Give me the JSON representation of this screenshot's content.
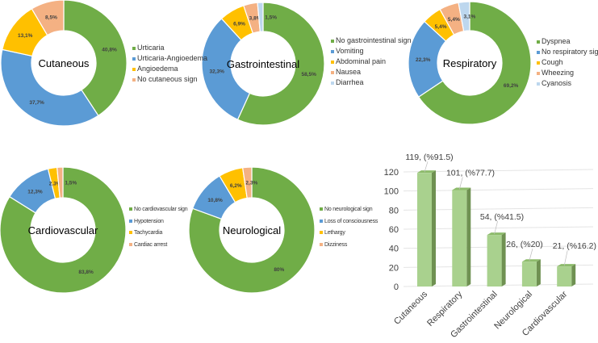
{
  "colors": {
    "green": "#70ad47",
    "blue": "#5b9bd5",
    "orange": "#ffc000",
    "salmon": "#f4b183",
    "lightblue": "#bdd7ee",
    "bar_front": "#a9d18e",
    "bar_side": "#6f9152",
    "bar_top": "#8dbb6b"
  },
  "chart_data": [
    {
      "type": "pie",
      "title": "Cutaneous",
      "labels": [
        "Urticaria",
        "Urticaria-Angioedema",
        "Angioedema",
        "No cutaneous sign"
      ],
      "values": [
        40.8,
        37.7,
        13.1,
        8.5
      ],
      "value_labels": [
        "40,8%",
        "37,7%",
        "13,1%",
        "8,5%"
      ],
      "colors": [
        "#70ad47",
        "#5b9bd5",
        "#ffc000",
        "#f4b183"
      ],
      "legend": "right"
    },
    {
      "type": "pie",
      "title": "Gastrointestinal",
      "labels": [
        "No gastrointestinal sign",
        "Vomiting",
        "Abdominal pain",
        "Nausea",
        "Diarrhea"
      ],
      "values": [
        58.5,
        32.3,
        6.9,
        3.8,
        1.5
      ],
      "value_labels": [
        "58,5%",
        "32,3%",
        "6,9%",
        "3,8%",
        "1,5%"
      ],
      "colors": [
        "#70ad47",
        "#5b9bd5",
        "#ffc000",
        "#f4b183",
        "#bdd7ee"
      ],
      "legend": "right"
    },
    {
      "type": "pie",
      "title": "Respiratory",
      "labels": [
        "Dyspnea",
        "No respiratory sign",
        "Cough",
        "Wheezing",
        "Cyanosis"
      ],
      "values": [
        69.2,
        22.3,
        5.4,
        5.4,
        3.1
      ],
      "value_labels": [
        "69,2%",
        "22,3%",
        "5,4%",
        "5,4%",
        "3,1%"
      ],
      "colors": [
        "#70ad47",
        "#5b9bd5",
        "#ffc000",
        "#f4b183",
        "#bdd7ee"
      ],
      "legend": "right"
    },
    {
      "type": "pie",
      "title": "Cardiovascular",
      "labels": [
        "No cardiovascular sign",
        "Hypotension",
        "Tachycardia",
        "Cardiac arrest"
      ],
      "values": [
        83.8,
        12.3,
        2.3,
        1.5
      ],
      "value_labels": [
        "83,8%",
        "12,3%",
        "2,3%",
        "1,5%"
      ],
      "colors": [
        "#70ad47",
        "#5b9bd5",
        "#ffc000",
        "#f4b183"
      ],
      "legend": "right"
    },
    {
      "type": "pie",
      "title": "Neurological",
      "labels": [
        "No neurological sign",
        "Loss of consciousness",
        "Lethargy",
        "Dizziness"
      ],
      "values": [
        80,
        10.8,
        6.2,
        2.3
      ],
      "value_labels": [
        "80%",
        "10,8%",
        "6,2%",
        "2,3%"
      ],
      "colors": [
        "#70ad47",
        "#5b9bd5",
        "#ffc000",
        "#f4b183"
      ],
      "legend": "right"
    },
    {
      "type": "bar",
      "categories": [
        "Cutaneous",
        "Respiratory",
        "Gastrointestinal",
        "Neurological",
        "Cardiovascular"
      ],
      "values": [
        119,
        101,
        54,
        26,
        21
      ],
      "data_labels": [
        "119, (%91.5)",
        "101, (%77.7)",
        "54, (%41.5)",
        "26, (%20)",
        "21, (%16.2)"
      ],
      "yticks": [
        "0",
        "20",
        "40",
        "60",
        "80",
        "100",
        "120"
      ],
      "ylim": [
        0,
        120
      ],
      "grid": true,
      "title": "",
      "xlabel": "",
      "ylabel": ""
    }
  ]
}
